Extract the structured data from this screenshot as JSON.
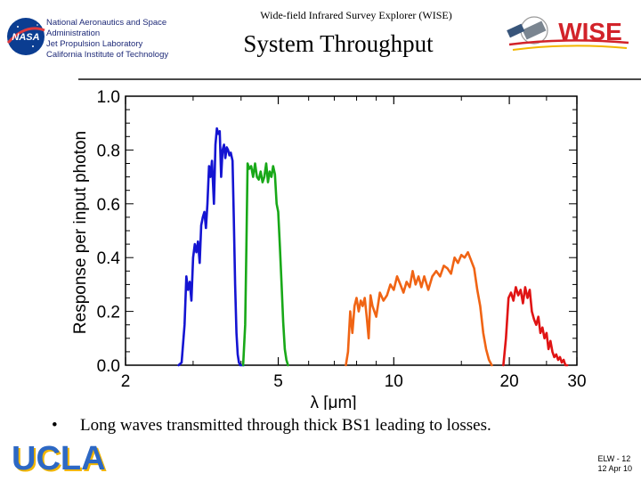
{
  "header": {
    "org_lines": [
      "National Aeronautics and Space",
      "Administration",
      "Jet Propulsion Laboratory",
      "California Institute of Technology"
    ],
    "nasa_logo_text": "NASA",
    "project": "Wide-field Infrared Survey Explorer (WISE)",
    "wise_logo_text": "WISE"
  },
  "slide": {
    "title": "System Throughput",
    "bullet": "Long waves transmitted through thick BS1 leading to losses.",
    "bullet_marker": "•"
  },
  "footer": {
    "logo_text": "UCLA",
    "slide_id": "ELW - 12",
    "date": "12 Apr 10"
  },
  "colors": {
    "w1": "#1414d2",
    "w2": "#18a818",
    "w3": "#f06414",
    "w4": "#e01414",
    "nasa_blue": "#0b3d91",
    "ucla_blue": "#2d68c4",
    "ucla_gold": "#f2b600",
    "wise_red": "#d2232a"
  },
  "chart_data": {
    "type": "line",
    "title": "",
    "xlabel": "λ [μm]",
    "ylabel": "Response per input photon",
    "xscale": "log",
    "xlim": [
      2,
      30
    ],
    "ylim": [
      0,
      1.0
    ],
    "x_ticks": [
      2,
      5,
      10,
      20,
      30
    ],
    "y_ticks": [
      0.0,
      0.2,
      0.4,
      0.6,
      0.8,
      1.0
    ],
    "grid": false,
    "legend": "none",
    "series": [
      {
        "color": "#1414d2",
        "x": [
          2.75,
          2.8,
          2.85,
          2.88,
          2.91,
          2.94,
          2.97,
          3.0,
          3.03,
          3.06,
          3.09,
          3.12,
          3.15,
          3.18,
          3.21,
          3.24,
          3.27,
          3.3,
          3.33,
          3.36,
          3.4,
          3.43,
          3.46,
          3.49,
          3.52,
          3.55,
          3.58,
          3.61,
          3.64,
          3.67,
          3.7,
          3.73,
          3.76,
          3.8,
          3.83,
          3.86,
          3.89,
          3.92,
          3.95,
          3.98,
          4.0,
          4.03,
          4.06
        ],
        "y": [
          0.0,
          0.01,
          0.15,
          0.33,
          0.28,
          0.31,
          0.24,
          0.4,
          0.45,
          0.42,
          0.46,
          0.38,
          0.52,
          0.55,
          0.57,
          0.51,
          0.6,
          0.74,
          0.7,
          0.76,
          0.6,
          0.82,
          0.88,
          0.86,
          0.87,
          0.7,
          0.8,
          0.82,
          0.77,
          0.81,
          0.8,
          0.78,
          0.79,
          0.76,
          0.55,
          0.3,
          0.12,
          0.04,
          0.01,
          0.0,
          0.0,
          0.0,
          0.0
        ]
      },
      {
        "color": "#18a818",
        "x": [
          4.05,
          4.1,
          4.13,
          4.16,
          4.2,
          4.25,
          4.3,
          4.35,
          4.4,
          4.45,
          4.5,
          4.55,
          4.6,
          4.65,
          4.7,
          4.75,
          4.8,
          4.85,
          4.9,
          4.95,
          5.0,
          5.05,
          5.1,
          5.15,
          5.2,
          5.25,
          5.3
        ],
        "y": [
          0.0,
          0.15,
          0.45,
          0.75,
          0.73,
          0.74,
          0.7,
          0.75,
          0.7,
          0.69,
          0.72,
          0.68,
          0.7,
          0.75,
          0.68,
          0.72,
          0.7,
          0.74,
          0.71,
          0.6,
          0.57,
          0.44,
          0.3,
          0.16,
          0.06,
          0.02,
          0.0
        ]
      },
      {
        "color": "#f06414",
        "x": [
          7.5,
          7.6,
          7.7,
          7.8,
          7.9,
          8.0,
          8.1,
          8.2,
          8.3,
          8.4,
          8.5,
          8.6,
          8.7,
          8.8,
          9.0,
          9.2,
          9.4,
          9.6,
          9.8,
          10.0,
          10.2,
          10.4,
          10.6,
          10.8,
          11.0,
          11.2,
          11.4,
          11.6,
          11.8,
          12.0,
          12.3,
          12.6,
          12.9,
          13.2,
          13.5,
          13.8,
          14.1,
          14.4,
          14.7,
          15.0,
          15.3,
          15.6,
          15.9,
          16.2,
          16.5,
          16.8,
          17.1,
          17.4,
          17.7,
          18.0
        ],
        "y": [
          0.0,
          0.05,
          0.2,
          0.12,
          0.22,
          0.25,
          0.2,
          0.24,
          0.22,
          0.25,
          0.18,
          0.1,
          0.26,
          0.22,
          0.18,
          0.27,
          0.24,
          0.26,
          0.3,
          0.28,
          0.33,
          0.3,
          0.27,
          0.31,
          0.29,
          0.35,
          0.3,
          0.33,
          0.29,
          0.33,
          0.28,
          0.33,
          0.35,
          0.33,
          0.37,
          0.36,
          0.34,
          0.4,
          0.38,
          0.41,
          0.4,
          0.42,
          0.39,
          0.36,
          0.28,
          0.22,
          0.12,
          0.06,
          0.02,
          0.0
        ]
      },
      {
        "color": "#e01414",
        "x": [
          19.3,
          19.6,
          19.9,
          20.2,
          20.5,
          20.8,
          21.1,
          21.4,
          21.7,
          22.0,
          22.3,
          22.6,
          22.9,
          23.2,
          23.5,
          23.8,
          24.1,
          24.4,
          24.7,
          25.0,
          25.3,
          25.6,
          25.9,
          26.2,
          26.5,
          26.8,
          27.1,
          27.4,
          27.7,
          28.0,
          28.3
        ],
        "y": [
          0.0,
          0.1,
          0.25,
          0.27,
          0.24,
          0.29,
          0.26,
          0.28,
          0.23,
          0.29,
          0.25,
          0.28,
          0.2,
          0.17,
          0.15,
          0.18,
          0.12,
          0.14,
          0.1,
          0.12,
          0.06,
          0.09,
          0.05,
          0.03,
          0.04,
          0.02,
          0.03,
          0.01,
          0.02,
          0.0,
          0.0
        ]
      }
    ]
  }
}
